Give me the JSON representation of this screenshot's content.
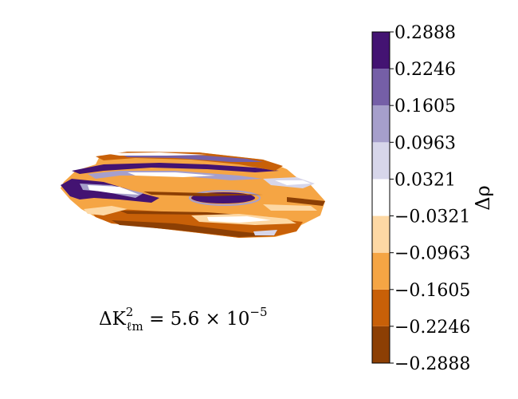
{
  "chart_data": {
    "type": "heatmap",
    "title": "",
    "annotation": "ΔK²ℓm = 5.6 × 10⁻⁵",
    "annotation_parts": {
      "lhs": "ΔK",
      "sup": "2",
      "sub": "ℓm",
      "rhs": " = 5.6 × 10",
      "exp": "−5"
    },
    "colorbar": {
      "label": "Δρ",
      "vmin": -0.2888,
      "vmax": 0.2888,
      "ticks": [
        "0.2888",
        "0.2246",
        "0.1605",
        "0.0963",
        "0.0321",
        "−0.0321",
        "−0.0963",
        "−0.1605",
        "−0.2246",
        "−0.2888"
      ],
      "levels": [
        -0.2888,
        -0.2246,
        -0.1605,
        -0.0963,
        -0.0321,
        0.0321,
        0.0963,
        0.1605,
        0.2246,
        0.2888
      ],
      "colors": [
        "#8c3f04",
        "#c86008",
        "#f5a544",
        "#fdd8a4",
        "#ffffff",
        "#d7d6ea",
        "#a69fcb",
        "#755fa7",
        "#431372"
      ]
    },
    "axes": {
      "visible": false
    }
  }
}
